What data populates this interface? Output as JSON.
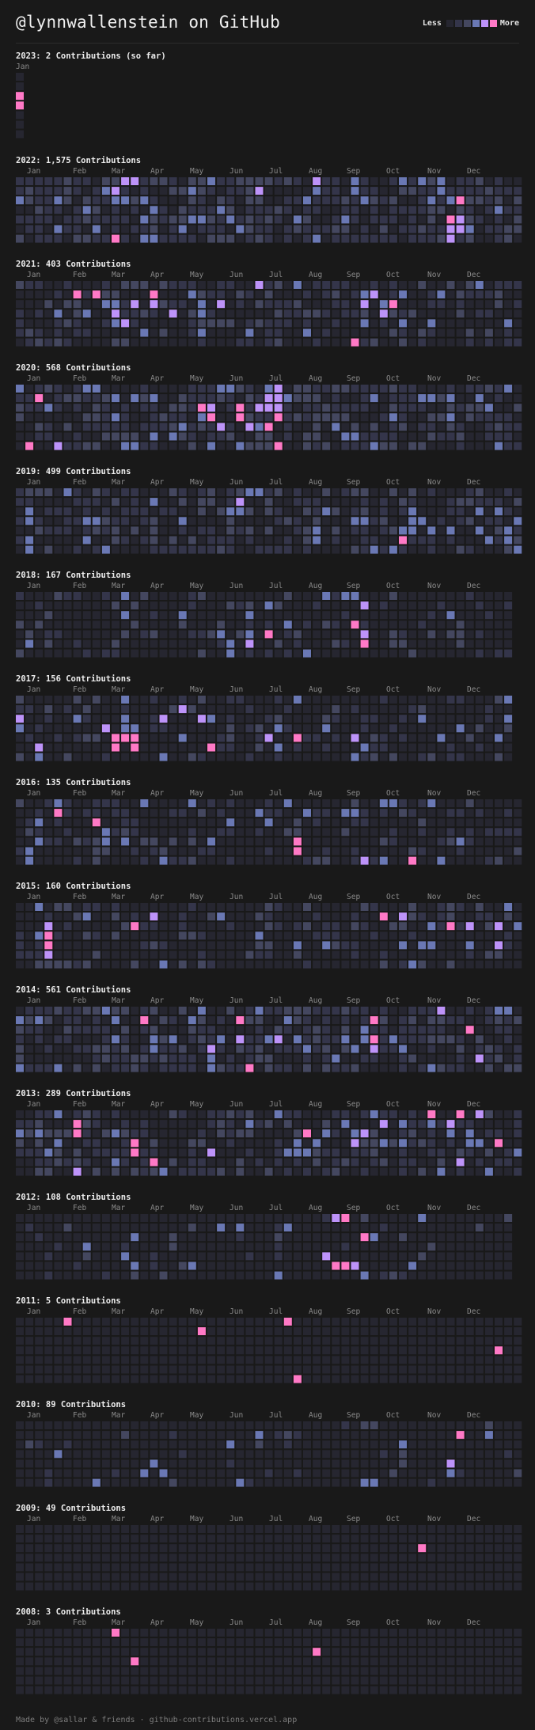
{
  "page": {
    "title": "@lynnwallenstein on GitHub",
    "footer": "Made by @sallar & friends · github-contributions.vercel.app"
  },
  "legend": {
    "less": "Less",
    "more": "More",
    "colors": [
      "#262630",
      "#34354a",
      "#44475f",
      "#6a78b4",
      "#bd93f9",
      "#ff79c6"
    ]
  },
  "palette": {
    "page_bg": "#191919",
    "empty_cell": "#262630",
    "level_1": "#34354a",
    "level_2": "#44475f",
    "level_3": "#6a78b4",
    "level_4": "#bd93f9",
    "level_5": "#ff79c6"
  },
  "years": [
    {
      "year": 2023,
      "title": "2023: 2 Contributions (so far)",
      "months": [
        "Jan"
      ],
      "weeks": 2,
      "density": 0.2,
      "highlights": [
        [
          0,
          2,
          5
        ],
        [
          0,
          3,
          5
        ]
      ]
    },
    {
      "year": 2022,
      "title": "2022: 1,575 Contributions",
      "months": [
        "Jan",
        "Feb",
        "Mar",
        "Apr",
        "May",
        "Jun",
        "Jul",
        "Aug",
        "Sep",
        "Oct",
        "Nov",
        "Dec"
      ],
      "weeks": 53,
      "density": 0.75,
      "highlights": [
        [
          11,
          0,
          4
        ],
        [
          12,
          0,
          4
        ],
        [
          10,
          6,
          5
        ],
        [
          25,
          1,
          4
        ],
        [
          31,
          0,
          4
        ],
        [
          40,
          0,
          3
        ],
        [
          46,
          2,
          5
        ],
        [
          46,
          4,
          4
        ],
        [
          45,
          4,
          5
        ],
        [
          46,
          5,
          4
        ],
        [
          45,
          5,
          4
        ],
        [
          45,
          6,
          4
        ],
        [
          10,
          1,
          4
        ]
      ]
    },
    {
      "year": 2021,
      "title": "2021: 403 Contributions",
      "months": [
        "Jan",
        "Feb",
        "Mar",
        "Apr",
        "May",
        "Jun",
        "Jul",
        "Aug",
        "Sep",
        "Oct",
        "Nov",
        "Dec"
      ],
      "weeks": 53,
      "density": 0.45,
      "highlights": [
        [
          6,
          1,
          5
        ],
        [
          8,
          1,
          5
        ],
        [
          14,
          1,
          5
        ],
        [
          12,
          2,
          4
        ],
        [
          14,
          2,
          4
        ],
        [
          21,
          2,
          4
        ],
        [
          25,
          0,
          4
        ],
        [
          11,
          4,
          4
        ],
        [
          10,
          3,
          4
        ],
        [
          36,
          2,
          4
        ],
        [
          39,
          2,
          5
        ],
        [
          37,
          1,
          4
        ],
        [
          38,
          3,
          4
        ],
        [
          35,
          6,
          5
        ],
        [
          16,
          3,
          4
        ],
        [
          9,
          2,
          3
        ],
        [
          48,
          0,
          3
        ]
      ]
    },
    {
      "year": 2020,
      "title": "2020: 568 Contributions",
      "months": [
        "Jan",
        "Feb",
        "Mar",
        "Apr",
        "May",
        "Jun",
        "Jul",
        "Aug",
        "Sep",
        "Oct",
        "Nov",
        "Dec"
      ],
      "weeks": 53,
      "density": 0.6,
      "highlights": [
        [
          2,
          1,
          5
        ],
        [
          1,
          6,
          5
        ],
        [
          4,
          6,
          4
        ],
        [
          19,
          2,
          5
        ],
        [
          20,
          2,
          4
        ],
        [
          23,
          2,
          5
        ],
        [
          23,
          3,
          5
        ],
        [
          20,
          3,
          5
        ],
        [
          21,
          4,
          4
        ],
        [
          24,
          4,
          4
        ],
        [
          26,
          4,
          5
        ],
        [
          27,
          0,
          4
        ],
        [
          26,
          1,
          4
        ],
        [
          27,
          1,
          4
        ],
        [
          27,
          2,
          4
        ],
        [
          26,
          2,
          4
        ],
        [
          27,
          3,
          5
        ],
        [
          27,
          6,
          5
        ],
        [
          28,
          1,
          3
        ],
        [
          25,
          2,
          4
        ]
      ]
    },
    {
      "year": 2019,
      "title": "2019: 499 Contributions",
      "months": [
        "Jan",
        "Feb",
        "Mar",
        "Apr",
        "May",
        "Jun",
        "Jul",
        "Aug",
        "Sep",
        "Oct",
        "Nov",
        "Dec"
      ],
      "weeks": 53,
      "density": 0.55,
      "highlights": [
        [
          23,
          1,
          4
        ],
        [
          40,
          5,
          5
        ],
        [
          41,
          2,
          3
        ],
        [
          41,
          3,
          3
        ],
        [
          41,
          4,
          3
        ],
        [
          40,
          4,
          3
        ]
      ]
    },
    {
      "year": 2018,
      "title": "2018: 167 Contributions",
      "months": [
        "Jan",
        "Feb",
        "Mar",
        "Apr",
        "May",
        "Jun",
        "Jul",
        "Aug",
        "Sep",
        "Oct",
        "Nov",
        "Dec"
      ],
      "weeks": 52,
      "density": 0.25,
      "highlights": [
        [
          36,
          1,
          4
        ],
        [
          35,
          3,
          5
        ],
        [
          36,
          4,
          4
        ],
        [
          36,
          5,
          5
        ],
        [
          24,
          5,
          4
        ],
        [
          26,
          4,
          5
        ],
        [
          32,
          0,
          3
        ],
        [
          34,
          0,
          3
        ],
        [
          28,
          3,
          3
        ],
        [
          45,
          2,
          3
        ]
      ]
    },
    {
      "year": 2017,
      "title": "2017: 156 Contributions",
      "months": [
        "Jan",
        "Feb",
        "Mar",
        "Apr",
        "May",
        "Jun",
        "Jul",
        "Aug",
        "Sep",
        "Oct",
        "Nov",
        "Dec"
      ],
      "weeks": 52,
      "density": 0.35,
      "highlights": [
        [
          0,
          2,
          4
        ],
        [
          2,
          5,
          4
        ],
        [
          9,
          3,
          4
        ],
        [
          10,
          4,
          5
        ],
        [
          11,
          4,
          5
        ],
        [
          12,
          4,
          5
        ],
        [
          10,
          5,
          5
        ],
        [
          12,
          5,
          5
        ],
        [
          15,
          2,
          4
        ],
        [
          17,
          1,
          4
        ],
        [
          19,
          2,
          4
        ],
        [
          20,
          5,
          5
        ],
        [
          26,
          4,
          4
        ],
        [
          29,
          4,
          5
        ],
        [
          35,
          4,
          4
        ]
      ]
    },
    {
      "year": 2016,
      "title": "2016: 135 Contributions",
      "months": [
        "Jan",
        "Feb",
        "Mar",
        "Apr",
        "May",
        "Jun",
        "Jul",
        "Aug",
        "Sep",
        "Oct",
        "Nov",
        "Dec"
      ],
      "weeks": 53,
      "density": 0.35,
      "highlights": [
        [
          4,
          1,
          5
        ],
        [
          8,
          2,
          5
        ],
        [
          29,
          4,
          5
        ],
        [
          29,
          5,
          5
        ],
        [
          36,
          6,
          4
        ],
        [
          41,
          6,
          5
        ],
        [
          38,
          6,
          3
        ],
        [
          30,
          1,
          3
        ],
        [
          34,
          1,
          3
        ],
        [
          2,
          4,
          3
        ]
      ]
    },
    {
      "year": 2015,
      "title": "2015: 160 Contributions",
      "months": [
        "Jan",
        "Feb",
        "Mar",
        "Apr",
        "May",
        "Jun",
        "Jul",
        "Aug",
        "Sep",
        "Oct",
        "Nov",
        "Dec"
      ],
      "weeks": 53,
      "density": 0.35,
      "highlights": [
        [
          3,
          2,
          4
        ],
        [
          3,
          3,
          5
        ],
        [
          3,
          4,
          5
        ],
        [
          3,
          5,
          4
        ],
        [
          12,
          2,
          5
        ],
        [
          14,
          1,
          4
        ],
        [
          38,
          1,
          5
        ],
        [
          40,
          1,
          4
        ],
        [
          45,
          2,
          5
        ],
        [
          47,
          2,
          4
        ],
        [
          50,
          2,
          4
        ],
        [
          50,
          4,
          4
        ],
        [
          2,
          3,
          3
        ],
        [
          7,
          1,
          3
        ]
      ]
    },
    {
      "year": 2014,
      "title": "2014: 561 Contributions",
      "months": [
        "Jan",
        "Feb",
        "Mar",
        "Apr",
        "May",
        "Jun",
        "Jul",
        "Aug",
        "Sep",
        "Oct",
        "Nov",
        "Dec"
      ],
      "weeks": 53,
      "density": 0.65,
      "highlights": [
        [
          13,
          1,
          5
        ],
        [
          23,
          1,
          5
        ],
        [
          23,
          3,
          4
        ],
        [
          24,
          6,
          5
        ],
        [
          20,
          4,
          4
        ],
        [
          27,
          3,
          4
        ],
        [
          37,
          1,
          5
        ],
        [
          37,
          3,
          5
        ],
        [
          37,
          4,
          4
        ],
        [
          44,
          0,
          4
        ],
        [
          47,
          2,
          5
        ],
        [
          48,
          5,
          4
        ],
        [
          36,
          2,
          3
        ],
        [
          16,
          3,
          3
        ]
      ]
    },
    {
      "year": 2013,
      "title": "2013: 289 Contributions",
      "months": [
        "Jan",
        "Feb",
        "Mar",
        "Apr",
        "May",
        "Jun",
        "Jul",
        "Aug",
        "Sep",
        "Oct",
        "Nov",
        "Dec"
      ],
      "weeks": 53,
      "density": 0.55,
      "highlights": [
        [
          6,
          1,
          5
        ],
        [
          6,
          2,
          5
        ],
        [
          12,
          3,
          5
        ],
        [
          12,
          4,
          5
        ],
        [
          14,
          5,
          5
        ],
        [
          6,
          6,
          4
        ],
        [
          20,
          4,
          4
        ],
        [
          30,
          2,
          5
        ],
        [
          36,
          2,
          4
        ],
        [
          38,
          1,
          4
        ],
        [
          43,
          0,
          5
        ],
        [
          46,
          0,
          5
        ],
        [
          45,
          1,
          4
        ],
        [
          48,
          0,
          4
        ],
        [
          50,
          3,
          5
        ],
        [
          46,
          5,
          4
        ],
        [
          35,
          3,
          4
        ],
        [
          47,
          2,
          3
        ]
      ]
    },
    {
      "year": 2012,
      "title": "2012: 108 Contributions",
      "months": [
        "Jan",
        "Feb",
        "Mar",
        "Apr",
        "May",
        "Jun",
        "Jul",
        "Aug",
        "Sep",
        "Oct",
        "Nov",
        "Dec"
      ],
      "weeks": 52,
      "density": 0.12,
      "highlights": [
        [
          33,
          0,
          4
        ],
        [
          34,
          0,
          5
        ],
        [
          36,
          2,
          5
        ],
        [
          32,
          4,
          4
        ],
        [
          33,
          5,
          5
        ],
        [
          34,
          5,
          5
        ],
        [
          35,
          5,
          4
        ],
        [
          41,
          5,
          3
        ],
        [
          12,
          2,
          3
        ]
      ]
    },
    {
      "year": 2011,
      "title": "2011: 5 Contributions",
      "months": [
        "Jan",
        "Feb",
        "Mar",
        "Apr",
        "May",
        "Jun",
        "Jul",
        "Aug",
        "Sep",
        "Oct",
        "Nov",
        "Dec"
      ],
      "weeks": 53,
      "density": 0.0,
      "highlights": [
        [
          5,
          0,
          5
        ],
        [
          19,
          1,
          5
        ],
        [
          28,
          0,
          5
        ],
        [
          29,
          6,
          5
        ],
        [
          50,
          3,
          5
        ]
      ]
    },
    {
      "year": 2010,
      "title": "2010: 89 Contributions",
      "months": [
        "Jan",
        "Feb",
        "Mar",
        "Apr",
        "May",
        "Jun",
        "Jul",
        "Aug",
        "Sep",
        "Oct",
        "Nov",
        "Dec"
      ],
      "weeks": 53,
      "density": 0.12,
      "highlights": [
        [
          46,
          1,
          5
        ],
        [
          45,
          4,
          4
        ],
        [
          45,
          5,
          3
        ],
        [
          40,
          2,
          3
        ],
        [
          36,
          6,
          3
        ],
        [
          37,
          0,
          2
        ],
        [
          39,
          5,
          2
        ]
      ]
    },
    {
      "year": 2009,
      "title": "2009: 49 Contributions",
      "months": [
        "Jan",
        "Feb",
        "Mar",
        "Apr",
        "May",
        "Jun",
        "Jul",
        "Aug",
        "Sep",
        "Oct",
        "Nov",
        "Dec"
      ],
      "weeks": 53,
      "density": 0.0,
      "highlights": [
        [
          42,
          2,
          5
        ]
      ]
    },
    {
      "year": 2008,
      "title": "2008: 3 Contributions",
      "months": [
        "Jan",
        "Feb",
        "Mar",
        "Apr",
        "May",
        "Jun",
        "Jul",
        "Aug",
        "Sep",
        "Oct",
        "Nov",
        "Dec"
      ],
      "weeks": 53,
      "density": 0.0,
      "highlights": [
        [
          10,
          0,
          5
        ],
        [
          12,
          3,
          5
        ],
        [
          31,
          2,
          5
        ]
      ]
    }
  ]
}
